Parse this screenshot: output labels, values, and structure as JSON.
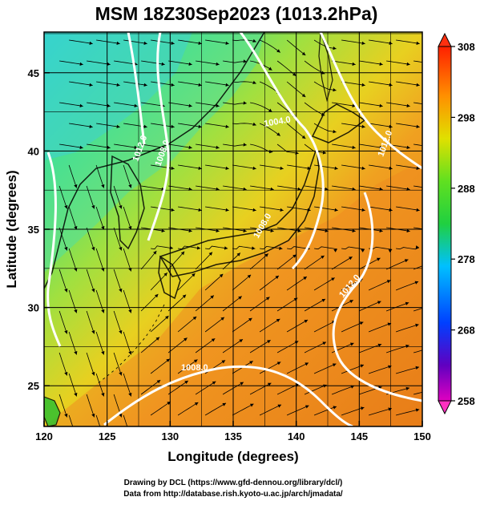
{
  "title": "MSM 18Z30Sep2023 (1013.2hPa)",
  "xaxis": {
    "label": "Longitude (degrees)",
    "range": [
      120,
      150
    ],
    "ticks": [
      "120",
      "125",
      "130",
      "135",
      "140",
      "145",
      "150"
    ]
  },
  "yaxis": {
    "label": "Latitude  (degrees)",
    "range": [
      22.4,
      47.6
    ],
    "ticks": [
      "25",
      "30",
      "35",
      "40",
      "45"
    ]
  },
  "colorbar": {
    "range": [
      258,
      308
    ],
    "ticks": [
      "258",
      "268",
      "278",
      "288",
      "298",
      "308"
    ]
  },
  "contours": [
    {
      "label": "1004.0",
      "color": "#ffffff"
    },
    {
      "label": "1008.0",
      "color": "#ffffff"
    },
    {
      "label": "1008.0",
      "color": "#ffffff"
    },
    {
      "label": "1012.0",
      "color": "#ffffff"
    },
    {
      "label": "1012.0",
      "color": "#ffffff"
    },
    {
      "label": "1008.0",
      "color": "#ffffff"
    },
    {
      "label": "1012.0",
      "color": "#ffffff"
    }
  ],
  "credits": {
    "line1": "Drawing by DCL (https://www.gfd-dennou.org/library/dcl/)",
    "line2": "Data from http://database.rish.kyoto-u.ac.jp/arch/jmadata/"
  }
}
